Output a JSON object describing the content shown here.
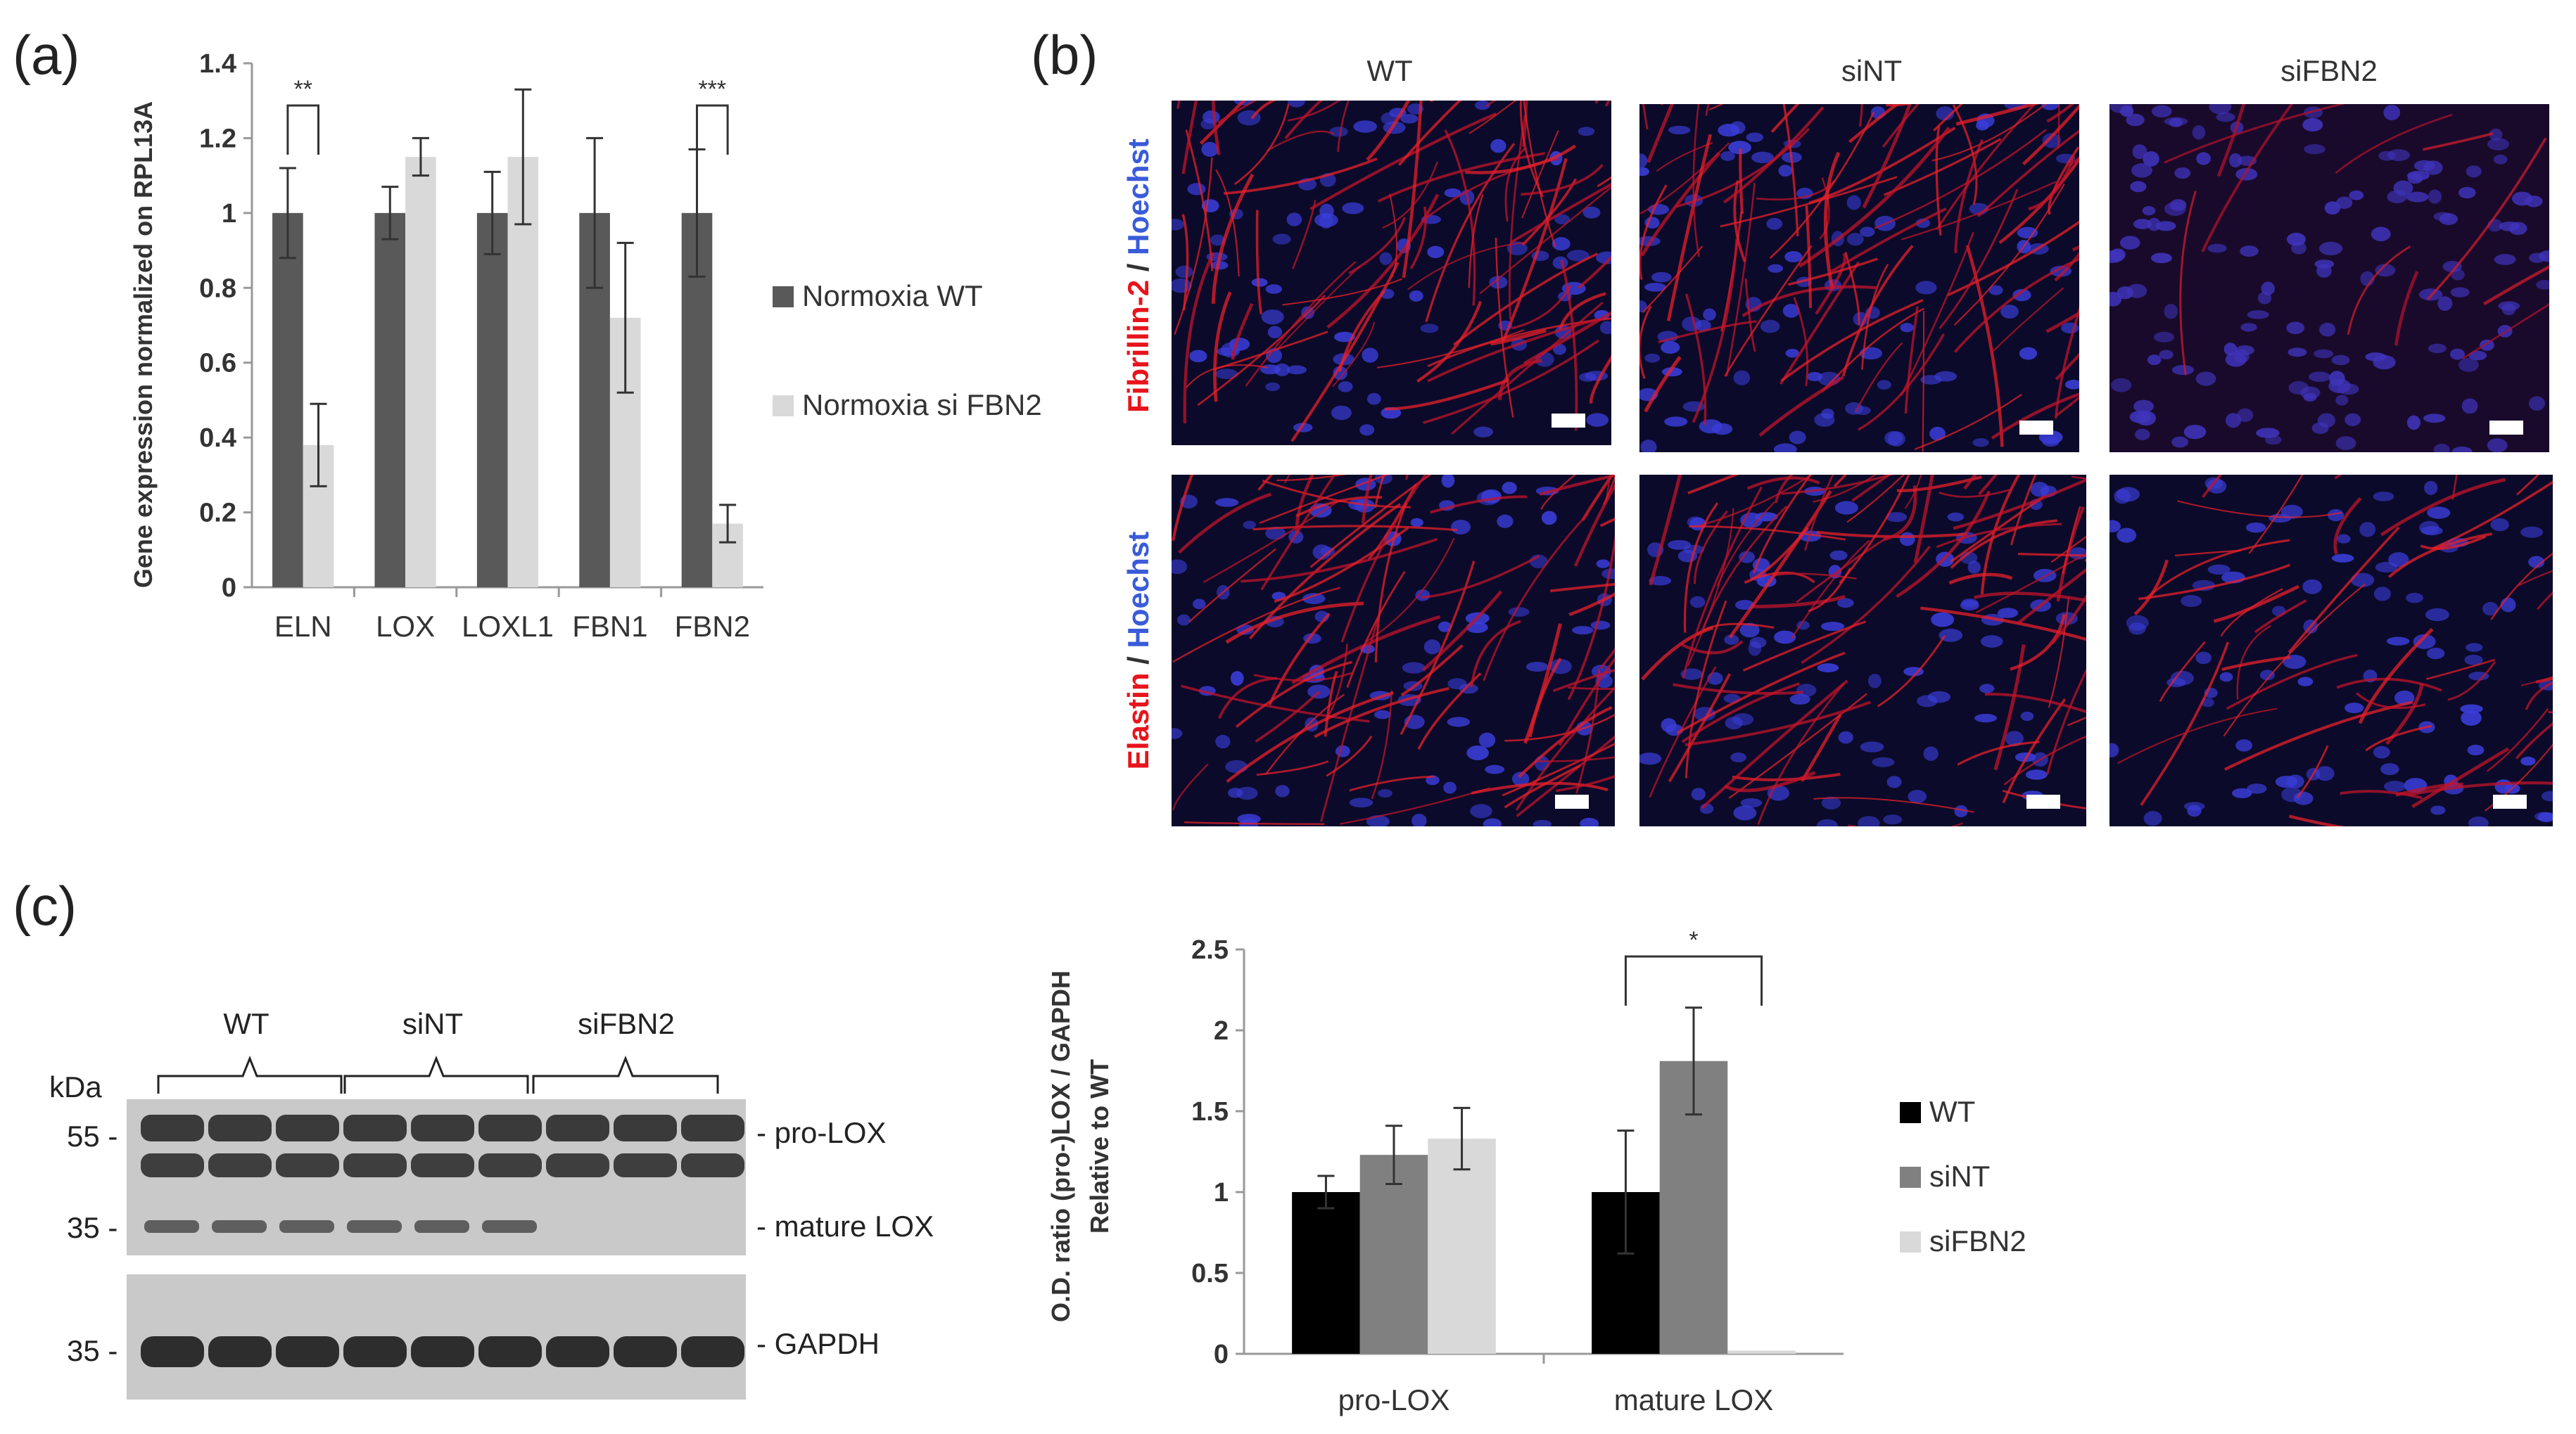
{
  "panel_labels": {
    "a": "(a)",
    "b": "(b)",
    "c": "(c)"
  },
  "chart_data": [
    {
      "type": "bar",
      "panel": "a",
      "ylabel": "Gene expression normalized on RPL13A",
      "ylim": [
        0,
        1.4
      ],
      "yticks": [
        "0",
        "0.2",
        "0.4",
        "0.6",
        "0.8",
        "1",
        "1.2",
        "1.4"
      ],
      "categories": [
        "ELN",
        "LOX",
        "LOXL1",
        "FBN1",
        "FBN2"
      ],
      "series": [
        {
          "name": "Normoxia WT",
          "color": "#595959",
          "values": [
            1.0,
            1.0,
            1.0,
            1.0,
            1.0
          ],
          "errors": [
            0.12,
            0.07,
            0.11,
            0.2,
            0.17
          ]
        },
        {
          "name": "Normoxia si FBN2",
          "color": "#d9d9d9",
          "values": [
            0.38,
            1.15,
            1.15,
            0.72,
            0.17
          ],
          "errors": [
            0.11,
            0.05,
            0.18,
            0.2,
            0.05
          ]
        }
      ],
      "significance": [
        {
          "category": "ELN",
          "label": "**"
        },
        {
          "category": "FBN2",
          "label": "***"
        }
      ],
      "legend_position": "right"
    },
    {
      "type": "bar",
      "panel": "c",
      "ylabel_lines": [
        "O.D. ratio (pro-)LOX / GAPDH",
        "Relative to WT"
      ],
      "ylim": [
        0,
        2.5
      ],
      "yticks": [
        "0",
        "0.5",
        "1",
        "1.5",
        "2",
        "2.5"
      ],
      "categories": [
        "pro-LOX",
        "mature LOX"
      ],
      "series": [
        {
          "name": "WT",
          "color": "#000000",
          "values": [
            1.0,
            1.0
          ],
          "errors": [
            0.1,
            0.38
          ]
        },
        {
          "name": "siNT",
          "color": "#808080",
          "values": [
            1.23,
            1.81
          ],
          "errors": [
            0.18,
            0.33
          ]
        },
        {
          "name": "siFBN2",
          "color": "#d9d9d9",
          "values": [
            1.33,
            0.02
          ],
          "errors": [
            0.19,
            0.0
          ]
        }
      ],
      "significance": [
        {
          "category": "mature LOX",
          "label": "*"
        }
      ],
      "legend_position": "right"
    }
  ],
  "microscopy": {
    "columns": [
      "WT",
      "siNT",
      "siFBN2"
    ],
    "rows": [
      {
        "stain": "Fibrillin-2",
        "separator": " / ",
        "counter": "Hoechst"
      },
      {
        "stain": "Elastin",
        "separator": " / ",
        "counter": "Hoechst"
      }
    ],
    "stain_color": "#e8141c",
    "counter_color": "#3a5bd9"
  },
  "western_blot": {
    "unit": "kDa",
    "groups": [
      "WT",
      "siNT",
      "siFBN2"
    ],
    "markers": [
      "55 -",
      "35 -",
      "35 -"
    ],
    "bands": [
      "- pro-LOX",
      "- mature LOX",
      "- GAPDH"
    ]
  }
}
